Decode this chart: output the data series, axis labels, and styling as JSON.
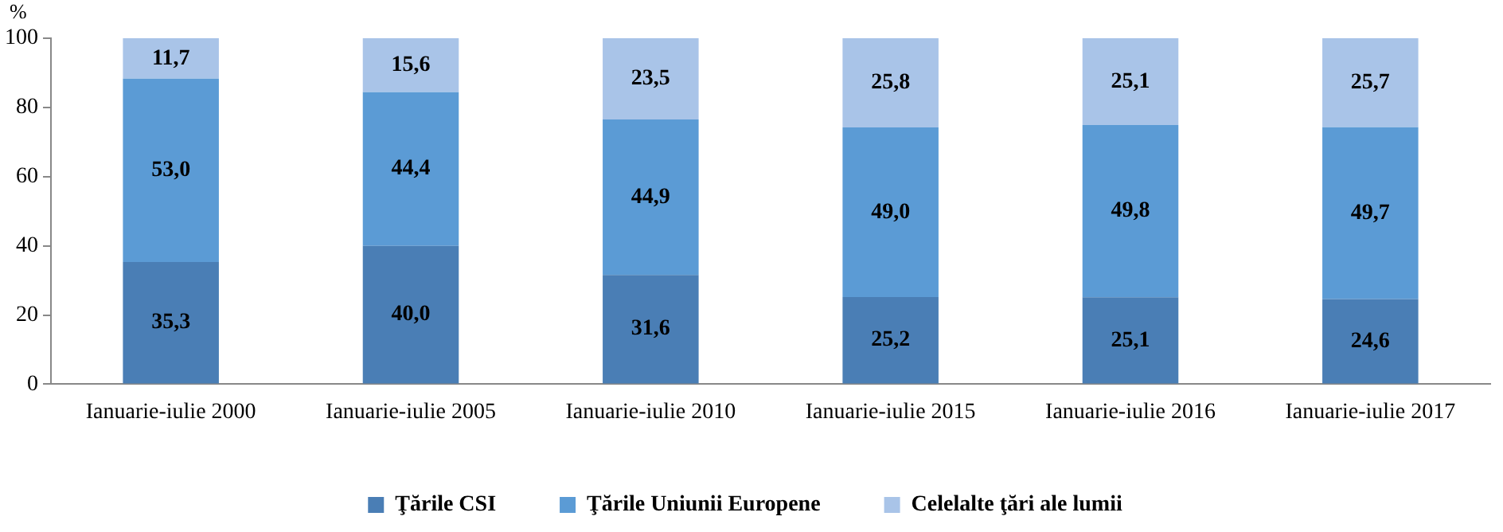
{
  "chart_data": {
    "type": "bar",
    "stacked": true,
    "ylabel": "%",
    "categories": [
      "Ianuarie-iulie 2000",
      "Ianuarie-iulie 2005",
      "Ianuarie-iulie 2010",
      "Ianuarie-iulie 2015",
      "Ianuarie-iulie 2016",
      "Ianuarie-iulie 2017"
    ],
    "series": [
      {
        "name": "Ţările CSI",
        "color": "#4a7eb5",
        "values": [
          35.3,
          40.0,
          31.6,
          25.2,
          25.1,
          24.6
        ],
        "value_labels": [
          "35,3",
          "40,0",
          "31,6",
          "25,2",
          "25,1",
          "24,6"
        ]
      },
      {
        "name": "Ţările Uniunii Europene",
        "color": "#5b9bd5",
        "values": [
          53.0,
          44.4,
          44.9,
          49.0,
          49.8,
          49.7
        ],
        "value_labels": [
          "53,0",
          "44,4",
          "44,9",
          "49,0",
          "49,8",
          "49,7"
        ]
      },
      {
        "name": "Celelalte ţări ale lumii",
        "color": "#a9c4e8",
        "values": [
          11.7,
          15.6,
          23.5,
          25.8,
          25.1,
          25.7
        ],
        "value_labels": [
          "11,7",
          "15,6",
          "23,5",
          "25,8",
          "25,1",
          "25,7"
        ]
      }
    ],
    "ylim": [
      0,
      100
    ],
    "yticks": [
      0,
      20,
      40,
      60,
      80,
      100
    ],
    "grid": false,
    "legend": "bottom"
  }
}
